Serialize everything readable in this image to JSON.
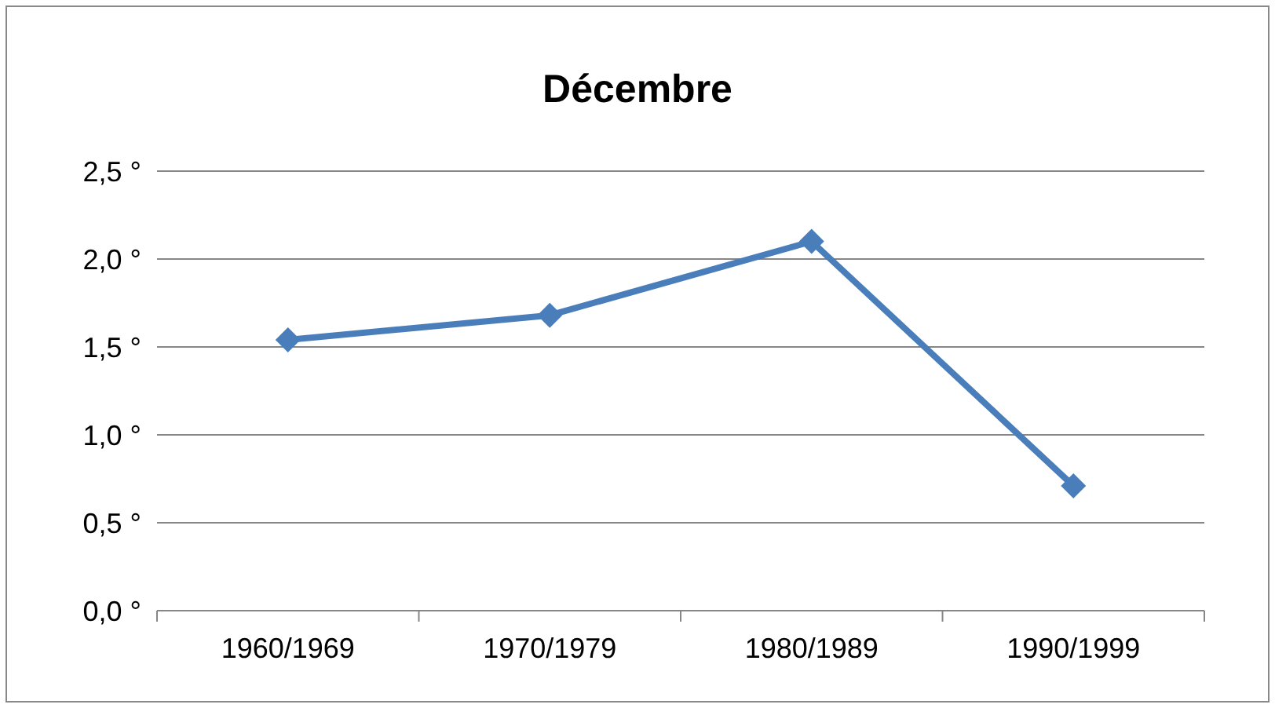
{
  "chart_data": {
    "type": "line",
    "title": "Décembre",
    "categories": [
      "1960/1969",
      "1970/1979",
      "1980/1989",
      "1990/1999"
    ],
    "series": [
      {
        "color": "#4a7ebb",
        "values": [
          1.54,
          1.68,
          2.1,
          0.71
        ]
      }
    ],
    "ylim": [
      0,
      2.5
    ],
    "yticks": [
      {
        "value": 0,
        "label": "0,0 °"
      },
      {
        "value": 0.5,
        "label": "0,5 °"
      },
      {
        "value": 1,
        "label": "1,0 °"
      },
      {
        "value": 1.5,
        "label": "1,5 °"
      },
      {
        "value": 2,
        "label": "2,0 °"
      },
      {
        "value": 2.5,
        "label": "2,5 °"
      }
    ],
    "grid": "y",
    "marker": "diamond",
    "line_style": "solid"
  }
}
